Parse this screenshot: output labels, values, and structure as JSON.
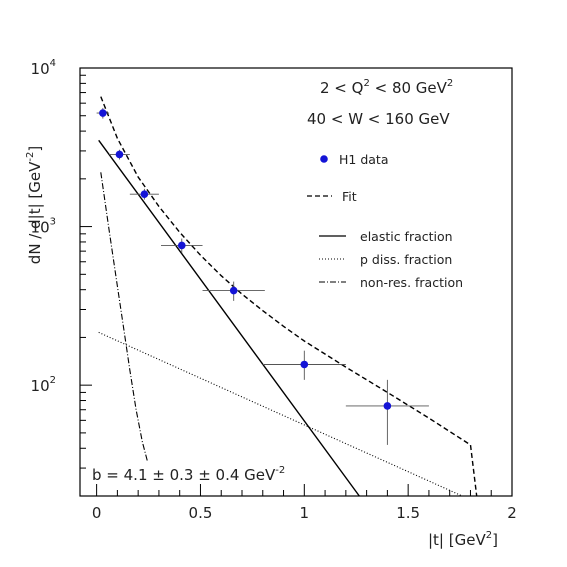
{
  "chart_data": {
    "type": "scatter",
    "y_scale": "log",
    "xlim": [
      -0.08,
      2.0
    ],
    "ylim": [
      20,
      10000
    ],
    "x_ticks": [
      0,
      0.5,
      1,
      1.5,
      2
    ],
    "x_tick_labels": [
      "0",
      "0.5",
      "1",
      "1.5",
      "2"
    ],
    "y_ticks": [
      {
        "value": 10000,
        "base": "10",
        "exp": "4"
      },
      {
        "value": 1000,
        "base": "10",
        "exp": "3"
      },
      {
        "value": 100,
        "base": "10",
        "exp": "2"
      }
    ],
    "xlabel": "|t|  [GeV",
    "xlabel_sup": "2",
    "xlabel_end": "]",
    "ylabel": "dN / d|t|  [GeV",
    "ylabel_sup": "-2",
    "ylabel_end": "]",
    "annotations": {
      "q2_range": {
        "text": "2 < Q",
        "sup": "2",
        "end": " < 80 GeV",
        "sup2": "2"
      },
      "w_range": "40 < W < 160 GeV",
      "slope": {
        "text": "b = 4.1 ± 0.3 ± 0.4 GeV",
        "sup": "-2"
      }
    },
    "legend": [
      {
        "label": "H1 data",
        "style": "marker"
      },
      {
        "label": "Fit",
        "style": "dashed"
      },
      {
        "label": "elastic fraction",
        "style": "solid"
      },
      {
        "label": "p diss. fraction",
        "style": "dotted"
      },
      {
        "label": "non-res. fraction",
        "style": "dashdot"
      }
    ],
    "points": [
      {
        "x": 0.03,
        "y": 5200,
        "xerr": 0.03,
        "ylo": 4800,
        "yhi": 5600
      },
      {
        "x": 0.11,
        "y": 2850,
        "xerr": 0.05,
        "ylo": 2650,
        "yhi": 3050
      },
      {
        "x": 0.23,
        "y": 1600,
        "xerr": 0.07,
        "ylo": 1480,
        "yhi": 1730
      },
      {
        "x": 0.41,
        "y": 760,
        "xerr": 0.1,
        "ylo": 680,
        "yhi": 840
      },
      {
        "x": 0.66,
        "y": 395,
        "xerr": 0.15,
        "ylo": 340,
        "yhi": 450
      },
      {
        "x": 1.0,
        "y": 135,
        "xerr": 0.2,
        "ylo": 108,
        "yhi": 165
      },
      {
        "x": 1.4,
        "y": 74,
        "xerr": 0.2,
        "ylo": 42,
        "yhi": 108
      }
    ],
    "curves": {
      "fit": {
        "x": [
          0.02,
          0.1,
          0.2,
          0.3,
          0.4,
          0.5,
          0.6,
          0.7,
          0.8,
          0.9,
          1.0,
          1.2,
          1.4,
          1.6,
          1.8,
          1.83
        ],
        "y": [
          6600,
          3600,
          2050,
          1340,
          920,
          660,
          490,
          375,
          295,
          235,
          190,
          130,
          90,
          62,
          42,
          20
        ]
      },
      "elastic": {
        "x": [
          0.01,
          1.265
        ],
        "y": [
          3500,
          20
        ]
      },
      "p_diss": {
        "x": [
          0.01,
          1.76
        ],
        "y": [
          215,
          20
        ]
      },
      "non_res": {
        "x": [
          0.02,
          0.06,
          0.1,
          0.13,
          0.16,
          0.19,
          0.22,
          0.245
        ],
        "y": [
          2200,
          950,
          420,
          230,
          125,
          70,
          44,
          33
        ]
      }
    }
  }
}
